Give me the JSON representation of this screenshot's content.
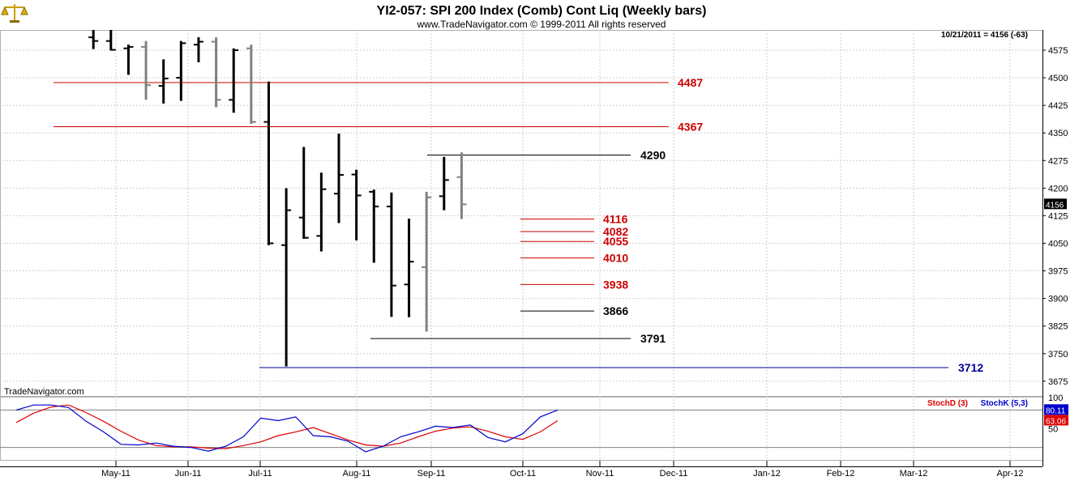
{
  "header": {
    "title": "YI2-057:  SPI 200 Index (Comb) Cont Liq  (Weekly bars)",
    "copyright": "www.TradeNavigator.com © 1999-2011 All rights reserved",
    "last_info": "10/21/2011 = 4156 (-63)",
    "watermark": "TradeNavigator.com",
    "logo_icon": "scales-icon"
  },
  "colors": {
    "grid": "#cfcfcf",
    "price_bar": "#000000",
    "recent_bar": "#808080",
    "resistance": "#cc0000",
    "support": "#000000",
    "target": "#000099",
    "stochD": "#dd0000",
    "stochK": "#0000cc"
  },
  "chart_data": [
    {
      "type": "ohlc",
      "title": "YI2-057:  SPI 200 Index (Comb) Cont Liq  (Weekly bars)",
      "x_ticks": [
        "May-11",
        "Jun-11",
        "Jul-11",
        "Aug-11",
        "Sep-11",
        "Oct-11",
        "Nov-11",
        "Dec-11",
        "Jan-12",
        "Feb-12",
        "Mar-12",
        "Apr-12"
      ],
      "y_ticks": [
        3675,
        3750,
        3825,
        3900,
        3975,
        4050,
        4125,
        4200,
        4275,
        4350,
        4425,
        4500,
        4575
      ],
      "ylim": [
        3635,
        4630
      ],
      "last_price": 4156,
      "bars": [
        {
          "date": "2011-04-22",
          "open": 4610,
          "high": 4640,
          "low": 4578,
          "close": 4600,
          "color": "black"
        },
        {
          "date": "2011-04-29",
          "open": 4600,
          "high": 4640,
          "low": 4574,
          "close": 4576,
          "color": "black"
        },
        {
          "date": "2011-05-06",
          "open": 4580,
          "high": 4590,
          "low": 4508,
          "close": 4584,
          "color": "black"
        },
        {
          "date": "2011-05-13",
          "open": 4584,
          "high": 4600,
          "low": 4440,
          "close": 4480,
          "color": "gray"
        },
        {
          "date": "2011-05-20",
          "open": 4478,
          "high": 4550,
          "low": 4430,
          "close": 4498,
          "color": "black"
        },
        {
          "date": "2011-05-27",
          "open": 4500,
          "high": 4600,
          "low": 4437,
          "close": 4594,
          "color": "black"
        },
        {
          "date": "2011-06-03",
          "open": 4590,
          "high": 4610,
          "low": 4542,
          "close": 4598,
          "color": "black"
        },
        {
          "date": "2011-06-10",
          "open": 4598,
          "high": 4610,
          "low": 4420,
          "close": 4440,
          "color": "gray"
        },
        {
          "date": "2011-06-17",
          "open": 4440,
          "high": 4580,
          "low": 4405,
          "close": 4575,
          "color": "black"
        },
        {
          "date": "2011-06-24",
          "open": 4580,
          "high": 4590,
          "low": 4375,
          "close": 4380,
          "color": "gray"
        },
        {
          "date": "2011-07-01",
          "open": 4380,
          "high": 4490,
          "low": 4045,
          "close": 4050,
          "color": "black"
        },
        {
          "date": "2011-07-08",
          "open": 4045,
          "high": 4200,
          "low": 3715,
          "close": 4140,
          "color": "black"
        },
        {
          "date": "2011-07-15",
          "open": 4120,
          "high": 4312,
          "low": 4062,
          "close": 4065,
          "color": "black"
        },
        {
          "date": "2011-07-22",
          "open": 4070,
          "high": 4242,
          "low": 4028,
          "close": 4197,
          "color": "black"
        },
        {
          "date": "2011-07-29",
          "open": 4185,
          "high": 4348,
          "low": 4105,
          "close": 4236,
          "color": "black"
        },
        {
          "date": "2011-08-05",
          "open": 4237,
          "high": 4250,
          "low": 4058,
          "close": 4180,
          "color": "black"
        },
        {
          "date": "2011-08-12",
          "open": 4190,
          "high": 4196,
          "low": 3997,
          "close": 4150,
          "color": "black"
        },
        {
          "date": "2011-08-19",
          "open": 4150,
          "high": 4188,
          "low": 3850,
          "close": 3935,
          "color": "black"
        },
        {
          "date": "2011-08-26",
          "open": 3938,
          "high": 4117,
          "low": 3849,
          "close": 4000,
          "color": "black"
        },
        {
          "date": "2011-09-02",
          "open": 3985,
          "high": 4190,
          "low": 3810,
          "close": 4175,
          "color": "gray"
        },
        {
          "date": "2011-09-09",
          "open": 4178,
          "high": 4285,
          "low": 4140,
          "close": 4222,
          "color": "black"
        },
        {
          "date": "2011-09-16",
          "open": 4230,
          "high": 4297,
          "low": 4116,
          "close": 4156,
          "color": "gray"
        }
      ],
      "levels": [
        {
          "value": 4487,
          "label": "4487",
          "color": "#cc0000"
        },
        {
          "value": 4367,
          "label": "4367",
          "color": "#cc0000"
        },
        {
          "value": 4290,
          "label": "4290",
          "color": "#000000"
        },
        {
          "value": 4116,
          "label": "4116",
          "color": "#cc0000"
        },
        {
          "value": 4082,
          "label": "4082",
          "color": "#cc0000"
        },
        {
          "value": 4055,
          "label": "4055",
          "color": "#cc0000"
        },
        {
          "value": 4010,
          "label": "4010",
          "color": "#cc0000"
        },
        {
          "value": 3938,
          "label": "3938",
          "color": "#cc0000"
        },
        {
          "value": 3866,
          "label": "3866",
          "color": "#000000"
        },
        {
          "value": 3791,
          "label": "3791",
          "color": "#000000"
        },
        {
          "value": 3712,
          "label": "3712",
          "color": "#000099"
        }
      ]
    },
    {
      "type": "line",
      "y_ticks": [
        100,
        50
      ],
      "ylim": [
        0,
        100
      ],
      "reference_lines": [
        80,
        20
      ],
      "legend": [
        "StochD (3)",
        "StochK (5,3)"
      ],
      "legend_position": "top-right",
      "last_values": {
        "stochK": "80.11",
        "stochD": "63.06"
      },
      "series": [
        {
          "name": "StochD (3)",
          "color": "#dd0000",
          "values": [
            60,
            75,
            85,
            88,
            76,
            62,
            46,
            32,
            23,
            21,
            21,
            19,
            18,
            23,
            29,
            39,
            45,
            52,
            42,
            32,
            24,
            22,
            27,
            37,
            46,
            51,
            53,
            46,
            37,
            33,
            45,
            63
          ]
        },
        {
          "name": "StochK (5,3)",
          "color": "#0000cc",
          "values": [
            80,
            88,
            88,
            84,
            62,
            45,
            25,
            24,
            27,
            22,
            20,
            14,
            22,
            37,
            67,
            63,
            69,
            39,
            37,
            30,
            13,
            22,
            37,
            45,
            54,
            52,
            56,
            36,
            29,
            42,
            69,
            80
          ]
        }
      ]
    }
  ]
}
